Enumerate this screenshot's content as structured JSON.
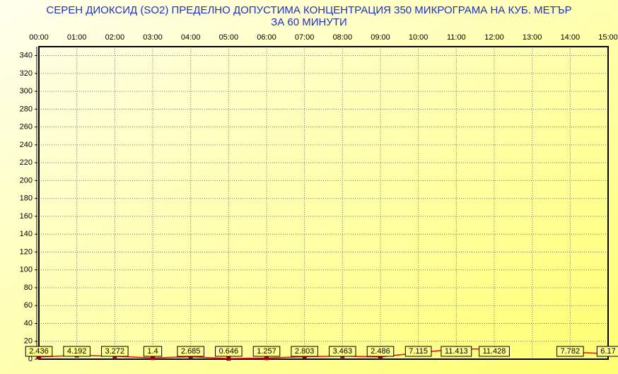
{
  "chart_data": {
    "type": "line",
    "title": "СЕРЕН ДИОКСИД  (SO2)  ПРЕДЕЛНО ДОПУСТИМА КОНЦЕНТРАЦИЯ 350 МИКРОГРАМА  НА КУБ. МЕТЪР",
    "subtitle": "ЗА 60 МИНУТИ",
    "categories": [
      "00:00",
      "01:00",
      "02:00",
      "03:00",
      "04:00",
      "05:00",
      "06:00",
      "07:00",
      "08:00",
      "09:00",
      "10:00",
      "11:00",
      "12:00",
      "13:00",
      "14:00",
      "15:00"
    ],
    "series": [
      {
        "color": "#ff0000",
        "values": [
          2.436,
          4.192,
          3.272,
          1.4,
          2.685,
          0.646,
          1.257,
          2.803,
          3.463,
          2.486,
          7.115,
          11.413,
          11.428,
          null,
          7.782,
          6.17
        ]
      }
    ],
    "ylim": [
      0,
      350
    ],
    "yticks": [
      0,
      20,
      40,
      60,
      80,
      100,
      120,
      140,
      160,
      180,
      200,
      220,
      240,
      260,
      280,
      300,
      320,
      340
    ],
    "grid": true
  }
}
